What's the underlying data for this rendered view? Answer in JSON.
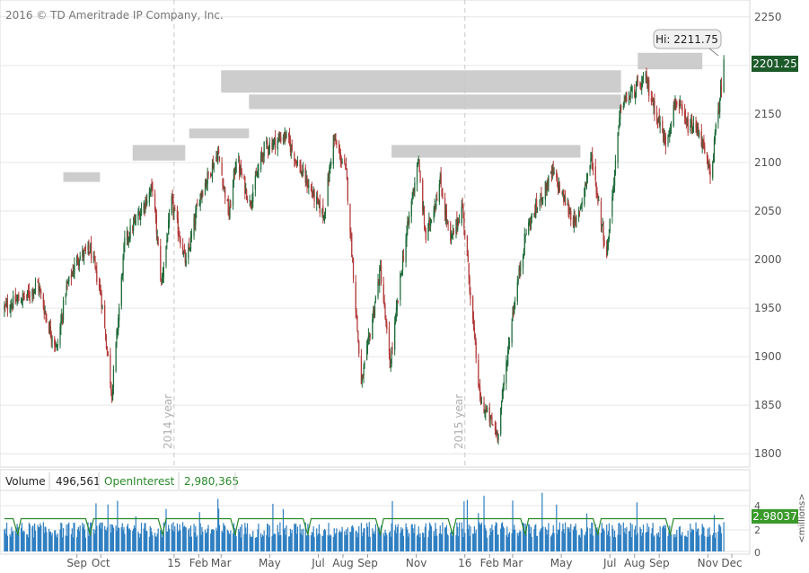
{
  "copyright": "2016 © TD Ameritrade IP Company, Inc.",
  "colors": {
    "up_candle": "#1f6b3a",
    "down_candle": "#b23a3a",
    "volume_bar": "#2f7fc1",
    "open_interest_line": "#2a8a2a",
    "last_price_badge": "#1c5a2a",
    "open_interest_badge": "#3a9a2a",
    "supply_zone": "#c8c8c8",
    "grid": "#e6e6e6",
    "axis_text": "#555555"
  },
  "chart_data": [
    {
      "type": "line",
      "title": "",
      "subtitle": "",
      "ylim": [
        1790,
        2260
      ],
      "y_ticks": [
        1800,
        1850,
        1900,
        1950,
        2000,
        2050,
        2100,
        2150,
        2200,
        2250
      ],
      "grid": true,
      "legend": "none",
      "last_price": 2201.25,
      "last_price_label": "2201.25",
      "high_label": "Hi: 2211.75",
      "high_value": 2211.75,
      "year_markers": [
        "2014 year",
        "2015 year"
      ],
      "price_zones": [
        {
          "from": "2014-08-15",
          "to": "2014-09-30",
          "low": 2080,
          "high": 2090
        },
        {
          "from": "2014-11-10",
          "to": "2015-01-15",
          "low": 2102,
          "high": 2118
        },
        {
          "from": "2015-01-20",
          "to": "2015-04-05",
          "low": 2125,
          "high": 2135
        },
        {
          "from": "2015-03-01",
          "to": "2016-07-15",
          "low": 2172,
          "high": 2195
        },
        {
          "from": "2015-04-05",
          "to": "2016-07-15",
          "low": 2155,
          "high": 2170
        },
        {
          "from": "2015-10-01",
          "to": "2016-05-25",
          "low": 2105,
          "high": 2118
        },
        {
          "from": "2016-08-05",
          "to": "2016-10-25",
          "low": 2196,
          "high": 2213
        }
      ],
      "series": [
        {
          "x": [
            "2014-06-02",
            "2014-06-16",
            "2014-06-30",
            "2014-07-14",
            "2014-07-28",
            "2014-08-07",
            "2014-08-18",
            "2014-09-02",
            "2014-09-18",
            "2014-10-01",
            "2014-10-15",
            "2014-10-31",
            "2014-11-14",
            "2014-12-05",
            "2014-12-16",
            "2014-12-29",
            "2015-01-16",
            "2015-02-02",
            "2015-02-25",
            "2015-03-11",
            "2015-03-20",
            "2015-04-06",
            "2015-04-24",
            "2015-05-21",
            "2015-06-10",
            "2015-07-08",
            "2015-07-20",
            "2015-08-05",
            "2015-08-24",
            "2015-09-17",
            "2015-09-29",
            "2015-10-15",
            "2015-11-03",
            "2015-11-13",
            "2015-12-01",
            "2015-12-14",
            "2015-12-29",
            "2016-01-20",
            "2016-02-11",
            "2016-03-01",
            "2016-03-18",
            "2016-04-20",
            "2016-05-19",
            "2016-06-08",
            "2016-06-27",
            "2016-07-15",
            "2016-08-15",
            "2016-09-09",
            "2016-09-22",
            "2016-10-05",
            "2016-10-21",
            "2016-11-04",
            "2016-11-21"
          ],
          "close": [
            1950,
            1957,
            1962,
            1975,
            1930,
            1908,
            1968,
            2002,
            2010,
            1965,
            1862,
            2018,
            2040,
            2075,
            1975,
            2060,
            1995,
            2065,
            2110,
            2045,
            2105,
            2058,
            2115,
            2128,
            2090,
            2045,
            2125,
            2090,
            1870,
            1990,
            1890,
            2000,
            2103,
            2022,
            2080,
            2018,
            2055,
            1855,
            1820,
            1945,
            2030,
            2090,
            2035,
            2105,
            2005,
            2160,
            2185,
            2120,
            2165,
            2138,
            2133,
            2085,
            2201
          ]
        },
        {
          "name": "Volume",
          "x_fraction_of_period": "daily",
          "values_millions_typical": [
            1.5,
            2.2
          ],
          "axis_ticks": [
            0,
            2,
            4
          ],
          "axis_label": "<millions>"
        }
      ]
    }
  ],
  "volume_panel": {
    "volume_label": "Volume",
    "volume_value": "496,561",
    "oi_label": "OpenInterest",
    "oi_value": "2,980,365",
    "oi_badge": "2.98037",
    "y_ticks": [
      "4",
      "2",
      "0"
    ],
    "unit_label": "<millions>"
  },
  "x_axis": {
    "labels": [
      "Sep",
      "Oct",
      "15",
      "Feb",
      "Mar",
      "May",
      "Jul",
      "Aug",
      "Sep",
      "Nov",
      "16",
      "Feb",
      "Mar",
      "May",
      "Jul",
      "Aug",
      "Sep",
      "Nov",
      "Dec"
    ]
  }
}
